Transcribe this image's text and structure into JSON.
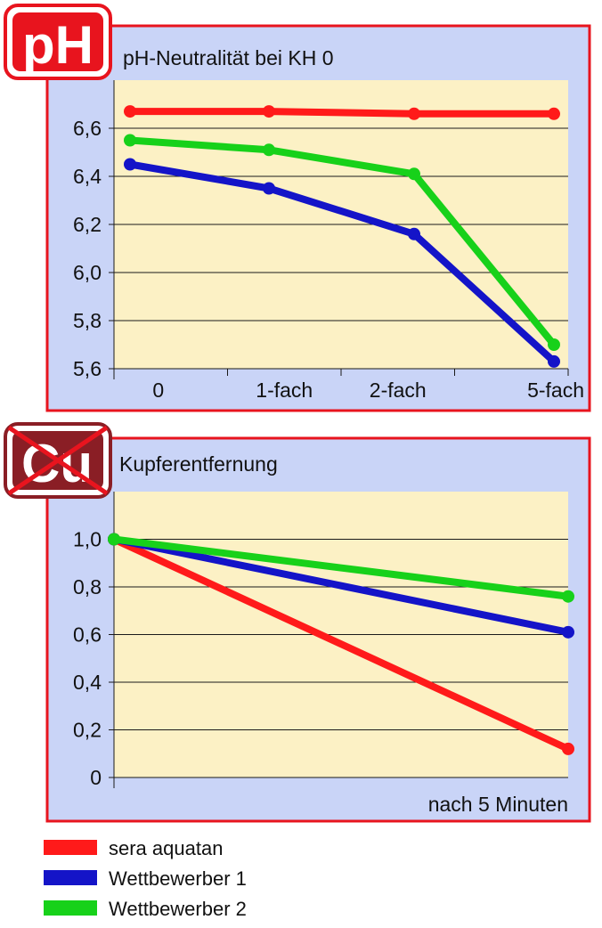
{
  "colors": {
    "panel_bg": "#c9d4f7",
    "panel_border": "#e8141e",
    "plot_bg": "#fcf1c5",
    "grid": "#1a1a1a",
    "red": "#ff1a1a",
    "blue": "#1414c8",
    "green": "#17d11a",
    "cu_badge": "#8a1e25"
  },
  "badges": {
    "ph": "pH",
    "cu": "Cu"
  },
  "legend": [
    {
      "label": "sera aquatan",
      "color": "#ff1a1a"
    },
    {
      "label": "Wettbewerber 1",
      "color": "#1414c8"
    },
    {
      "label": "Wettbewerber 2",
      "color": "#17d11a"
    }
  ],
  "chart_data": [
    {
      "type": "line",
      "title": "pH-Neutralität bei KH 0",
      "categories": [
        "0",
        "1-fach",
        "2-fach",
        "5-fach"
      ],
      "ylim": [
        5.6,
        6.8
      ],
      "yticks": [
        "5,6",
        "5,8",
        "6,0",
        "6,2",
        "6,4",
        "6,6"
      ],
      "ytick_values": [
        5.6,
        5.8,
        6.0,
        6.2,
        6.4,
        6.6
      ],
      "grid": true,
      "series": [
        {
          "name": "sera aquatan",
          "color": "#ff1a1a",
          "values": [
            6.67,
            6.67,
            6.66,
            6.66
          ]
        },
        {
          "name": "Wettbewerber 1",
          "color": "#1414c8",
          "values": [
            6.45,
            6.35,
            6.16,
            5.63
          ]
        },
        {
          "name": "Wettbewerber 2",
          "color": "#17d11a",
          "values": [
            6.55,
            6.51,
            6.41,
            5.7
          ]
        }
      ]
    },
    {
      "type": "line",
      "title": "Kupferentfernung",
      "xlabel": "nach 5 Minuten",
      "x": [
        0,
        5
      ],
      "ylim": [
        0,
        1.2
      ],
      "yticks": [
        "0",
        "0,2",
        "0,4",
        "0,6",
        "0,8",
        "1,0"
      ],
      "ytick_values": [
        0,
        0.2,
        0.4,
        0.6,
        0.8,
        1.0
      ],
      "grid": true,
      "series": [
        {
          "name": "sera aquatan",
          "color": "#ff1a1a",
          "values": [
            1.0,
            0.12
          ]
        },
        {
          "name": "Wettbewerber 1",
          "color": "#1414c8",
          "values": [
            1.0,
            0.61
          ]
        },
        {
          "name": "Wettbewerber 2",
          "color": "#17d11a",
          "values": [
            1.0,
            0.76
          ]
        }
      ]
    }
  ]
}
